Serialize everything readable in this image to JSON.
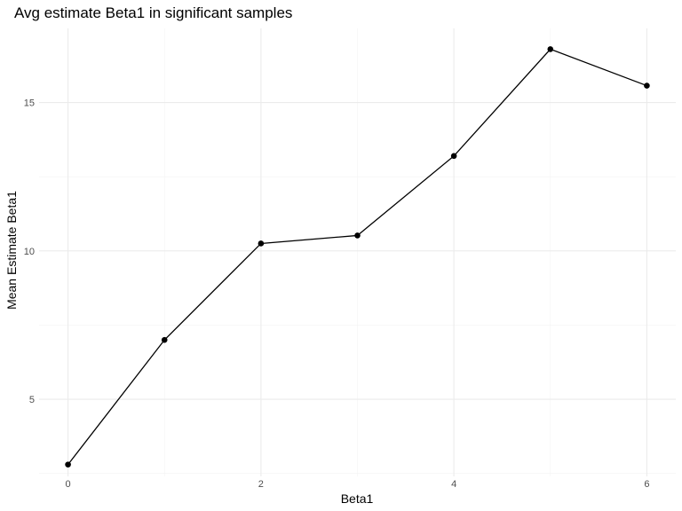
{
  "chart_data": {
    "type": "line",
    "title": "Avg estimate Beta1 in significant samples",
    "xlabel": "Beta1",
    "ylabel": "Mean Estimate Beta1",
    "x": [
      0,
      1,
      2,
      3,
      4,
      5,
      6
    ],
    "series": [
      {
        "values": [
          2.8,
          7.0,
          10.25,
          10.52,
          13.2,
          16.8,
          15.57
        ]
      }
    ],
    "xlim": [
      -0.3,
      6.3
    ],
    "ylim": [
      2.4,
      17.5
    ],
    "x_ticks": [
      0,
      2,
      4,
      6
    ],
    "x_minor": [
      1,
      3,
      5
    ],
    "y_ticks": [
      5,
      10,
      15
    ],
    "y_minor": [
      2.5,
      7.5,
      12.5
    ],
    "grid": true,
    "colors": {
      "line": "#000000",
      "point": "#000000",
      "grid": "#ebebeb",
      "background": "#ffffff"
    }
  }
}
